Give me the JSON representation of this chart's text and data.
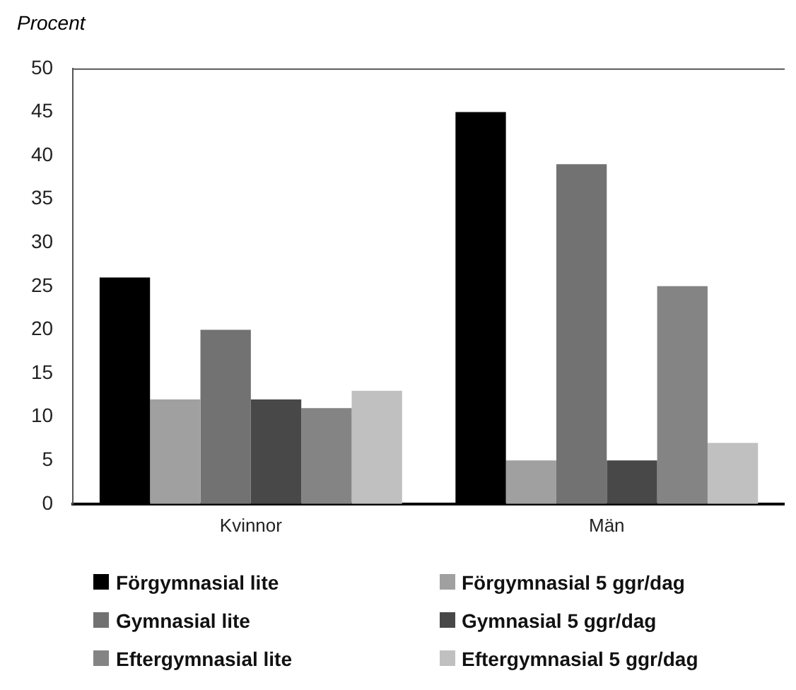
{
  "chart_data": {
    "type": "bar",
    "ylabel": "Procent",
    "categories": [
      "Kvinnor",
      "Män"
    ],
    "series": [
      {
        "name": "Förgymnasial lite",
        "color": "#000000",
        "values": [
          26,
          45
        ]
      },
      {
        "name": "Förgymnasial 5 ggr/dag",
        "color": "#a0a0a0",
        "values": [
          12,
          5
        ]
      },
      {
        "name": "Gymnasial lite",
        "color": "#727272",
        "values": [
          20,
          39
        ]
      },
      {
        "name": "Gymnasial 5 ggr/dag",
        "color": "#484848",
        "values": [
          12,
          5
        ]
      },
      {
        "name": "Eftergymnasial lite",
        "color": "#848484",
        "values": [
          11,
          25
        ]
      },
      {
        "name": "Eftergymnasial 5 ggr/dag",
        "color": "#c0c0c0",
        "values": [
          13,
          7
        ]
      }
    ],
    "ylim": [
      0,
      50
    ],
    "yticks": [
      0,
      5,
      10,
      15,
      20,
      25,
      30,
      35,
      40,
      45,
      50
    ],
    "grid": false,
    "legend": "bottom"
  }
}
